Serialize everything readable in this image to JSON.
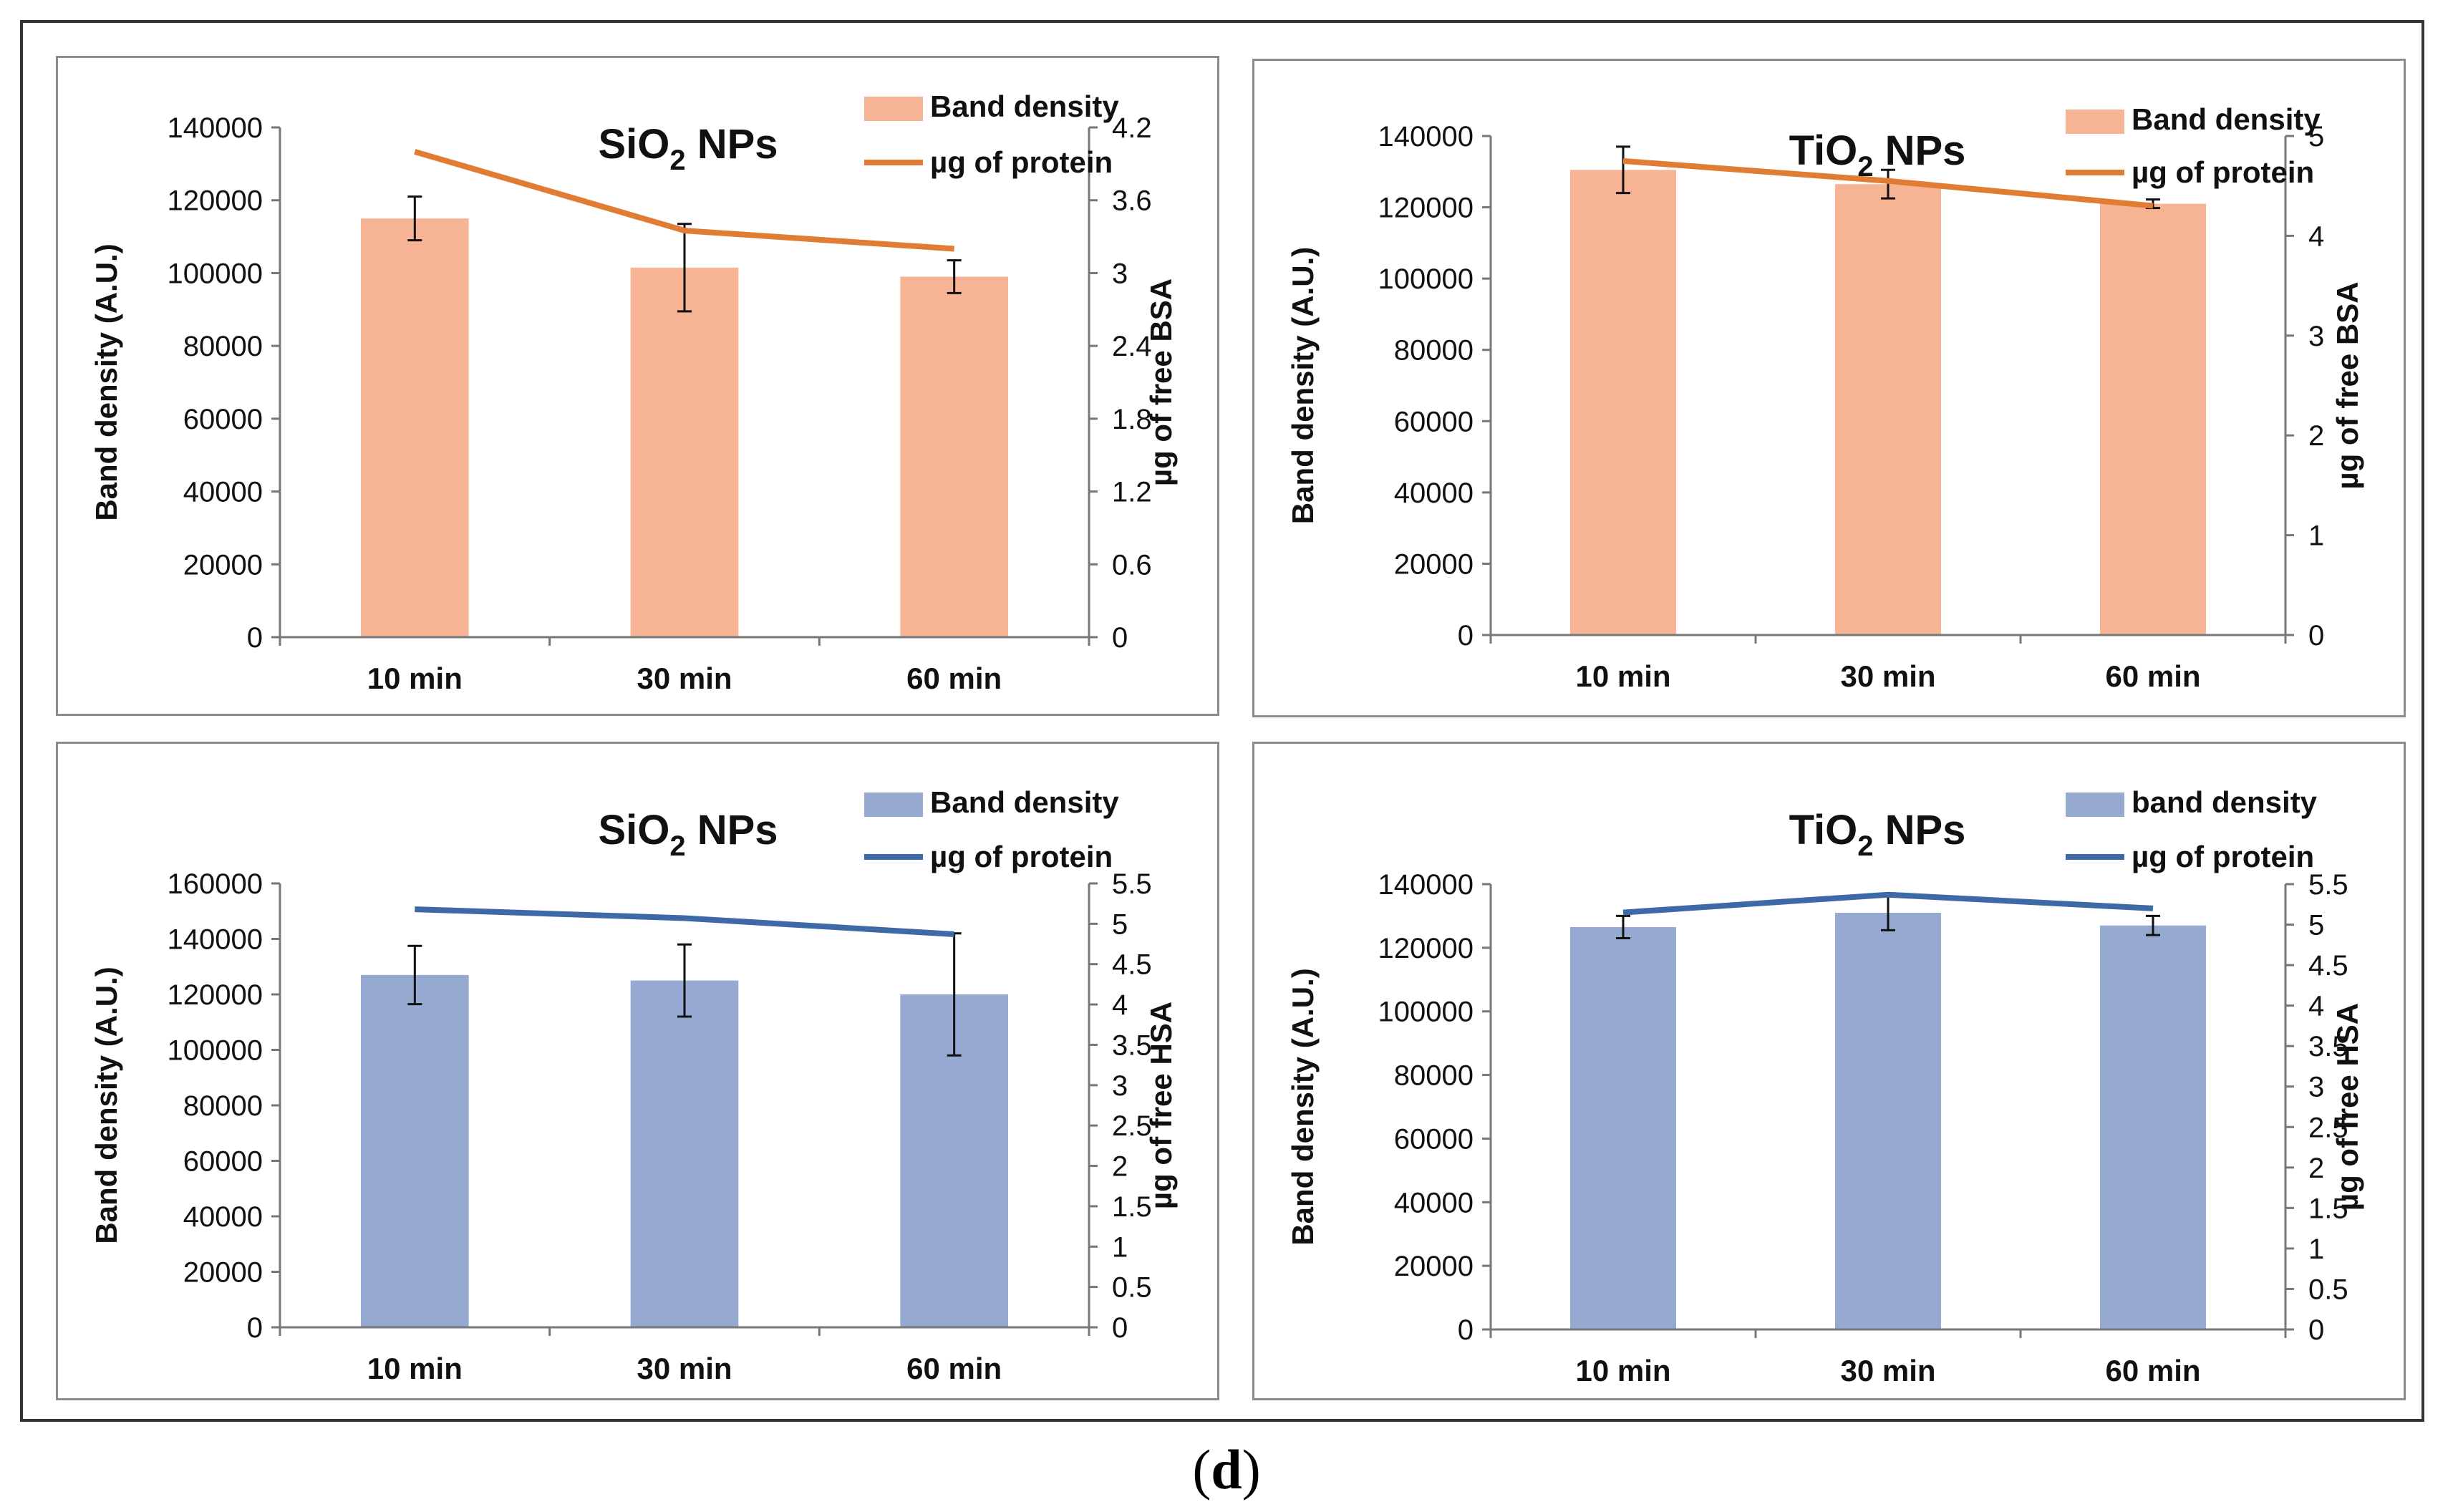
{
  "figure_label": {
    "open": "(",
    "letter": "d",
    "close": ")"
  },
  "colors": {
    "bsa_bar": "#f7b494",
    "bsa_line": "#e07c33",
    "hsa_bar": "#95a9d1",
    "hsa_line": "#3d6aa6",
    "axis": "#777777",
    "text": "#111111"
  },
  "chart_data": [
    {
      "type": "bar",
      "title_main": "SiO",
      "title_sub": "2",
      "title_tail": " NPs",
      "categories": [
        "10 min",
        "30 min",
        "60 min"
      ],
      "ylabel": "Band density (A.U.)",
      "y2label": "µg of free BSA",
      "ylim": [
        0,
        140000
      ],
      "y_ticks": [
        "0",
        "20000",
        "40000",
        "60000",
        "80000",
        "100000",
        "120000",
        "140000"
      ],
      "y2lim": [
        0,
        4.2
      ],
      "y2_ticks": [
        "0",
        "0.6",
        "1.2",
        "1.8",
        "2.4",
        "3",
        "3.6",
        "4.2"
      ],
      "series": [
        {
          "name": "Band density",
          "kind": "bar",
          "values": [
            115000,
            101500,
            99000
          ],
          "errors": [
            6000,
            12000,
            4500
          ]
        },
        {
          "name": "µg of protein",
          "kind": "line",
          "axis": "right",
          "values": [
            4.0,
            3.35,
            3.2
          ]
        }
      ],
      "legend_position": "top-right",
      "palette": "bsa"
    },
    {
      "type": "bar",
      "title_main": "TiO",
      "title_sub": "2",
      "title_tail": " NPs",
      "categories": [
        "10 min",
        "30 min",
        "60 min"
      ],
      "ylabel": "Band density (A.U.)",
      "y2label": "µg of free BSA",
      "ylim": [
        0,
        140000
      ],
      "y_ticks": [
        "0",
        "20000",
        "40000",
        "60000",
        "80000",
        "100000",
        "120000",
        "140000"
      ],
      "y2lim": [
        0,
        5
      ],
      "y2_ticks": [
        "0",
        "1",
        "2",
        "3",
        "4",
        "5"
      ],
      "series": [
        {
          "name": "Band density",
          "kind": "bar",
          "values": [
            130500,
            126500,
            121000
          ],
          "errors": [
            6500,
            4000,
            1200
          ]
        },
        {
          "name": "µg of protein",
          "kind": "line",
          "axis": "right",
          "values": [
            4.75,
            4.55,
            4.3
          ]
        }
      ],
      "legend_position": "top-right",
      "palette": "bsa"
    },
    {
      "type": "bar",
      "title_main": "SiO",
      "title_sub": "2",
      "title_tail": " NPs",
      "categories": [
        "10 min",
        "30 min",
        "60 min"
      ],
      "ylabel": "Band density (A.U.)",
      "y2label": "µg of free HSA",
      "ylim": [
        0,
        160000
      ],
      "y_ticks": [
        "0",
        "20000",
        "40000",
        "60000",
        "80000",
        "100000",
        "120000",
        "140000",
        "160000"
      ],
      "y2lim": [
        0,
        5.5
      ],
      "y2_ticks": [
        "0",
        "0.5",
        "1",
        "1.5",
        "2",
        "2.5",
        "3",
        "3.5",
        "4",
        "4.5",
        "5",
        "5.5"
      ],
      "series": [
        {
          "name": "Band density",
          "kind": "bar",
          "values": [
            127000,
            125000,
            120000
          ],
          "errors": [
            10500,
            13000,
            22000
          ]
        },
        {
          "name": "µg of protein",
          "kind": "line",
          "axis": "right",
          "values": [
            5.18,
            5.07,
            4.87
          ]
        }
      ],
      "legend_position": "top-right",
      "palette": "hsa"
    },
    {
      "type": "bar",
      "title_main": "TiO",
      "title_sub": "2",
      "title_tail": " NPs",
      "categories": [
        "10 min",
        "30 min",
        "60 min"
      ],
      "ylabel": "Band density (A.U.)",
      "y2label": "µg of free HSA",
      "ylim": [
        0,
        140000
      ],
      "y_ticks": [
        "0",
        "20000",
        "40000",
        "60000",
        "80000",
        "100000",
        "120000",
        "140000"
      ],
      "y2lim": [
        0,
        5.5
      ],
      "y2_ticks": [
        "0",
        "0.5",
        "1",
        "1.5",
        "2",
        "2.5",
        "3",
        "3.5",
        "4",
        "4.5",
        "5",
        "5.5"
      ],
      "series": [
        {
          "name": "band density",
          "kind": "bar",
          "values": [
            126500,
            131000,
            127000
          ],
          "errors": [
            3500,
            5500,
            3000
          ]
        },
        {
          "name": "µg of protein",
          "kind": "line",
          "axis": "right",
          "values": [
            5.15,
            5.37,
            5.2
          ]
        }
      ],
      "legend_position": "top-right",
      "palette": "hsa"
    }
  ]
}
